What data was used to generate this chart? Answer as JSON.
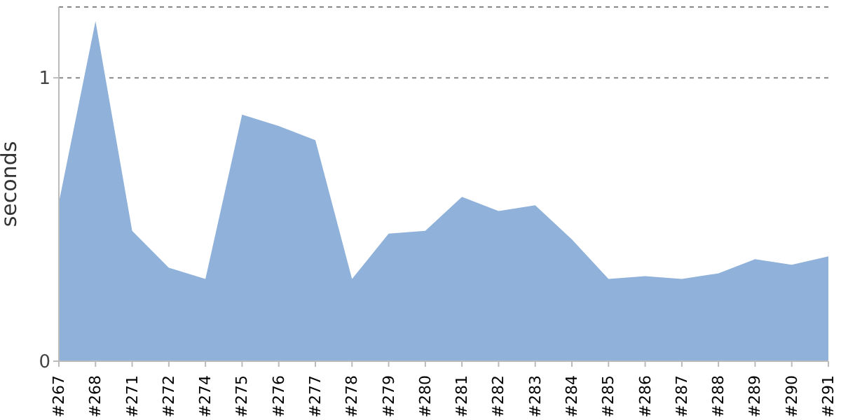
{
  "chart_data": {
    "type": "area",
    "ylabel": "seconds",
    "categories": [
      "#267",
      "#268",
      "#271",
      "#272",
      "#274",
      "#275",
      "#276",
      "#277",
      "#278",
      "#279",
      "#280",
      "#281",
      "#282",
      "#283",
      "#284",
      "#285",
      "#286",
      "#287",
      "#288",
      "#289",
      "#290",
      "#291"
    ],
    "series": [
      {
        "color": "#8fb1da",
        "values": [
          0.56,
          1.2,
          0.46,
          0.33,
          0.29,
          0.87,
          0.83,
          0.78,
          0.29,
          0.45,
          0.46,
          0.58,
          0.53,
          0.55,
          0.43,
          0.29,
          0.3,
          0.29,
          0.31,
          0.36,
          0.34,
          0.37
        ]
      }
    ],
    "ylim": [
      0,
      1.25
    ],
    "yticks": [
      0,
      1
    ],
    "grid": "y",
    "line_style": "dashed"
  }
}
